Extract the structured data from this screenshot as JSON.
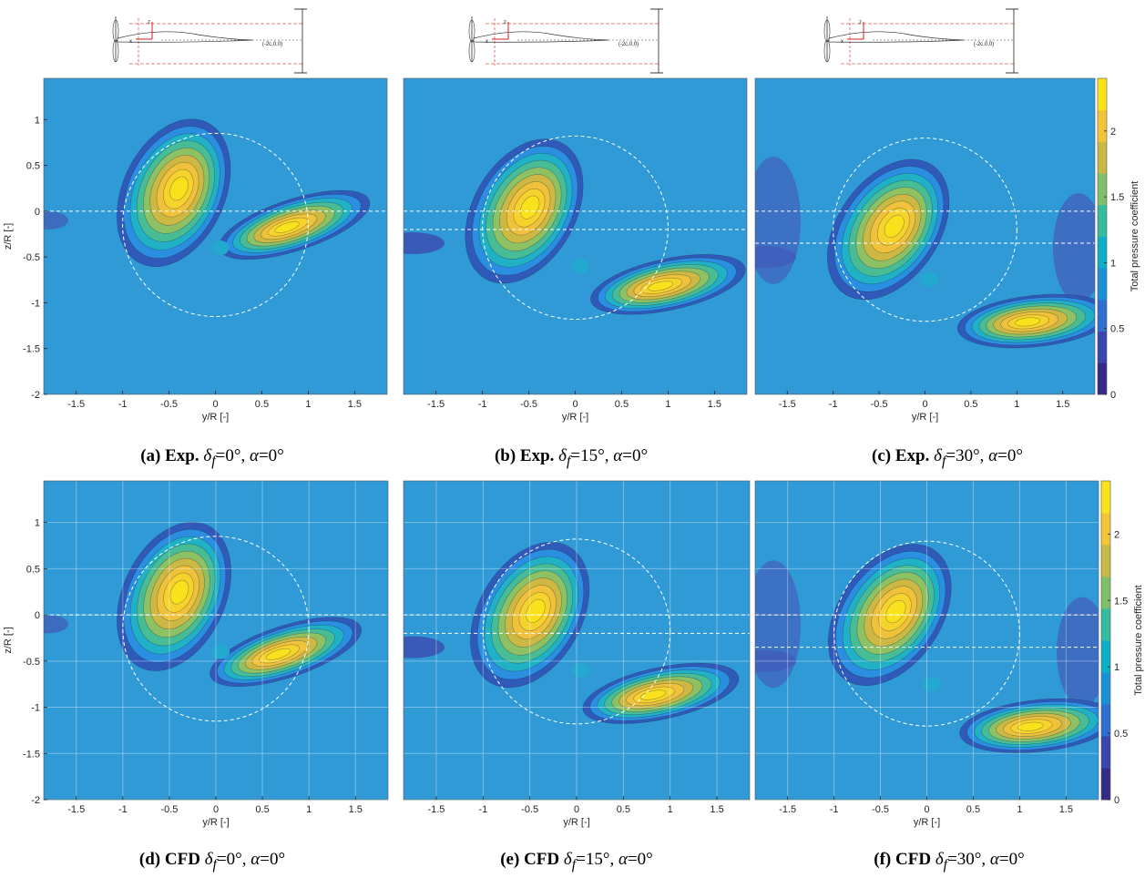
{
  "figure": {
    "panels": [
      {
        "id": "a",
        "caption": {
          "label": "(a)",
          "source": "Exp.",
          "delta_sym": "δ",
          "delta_sub": "f",
          "delta_val": "=0°",
          "alpha_sym": "α",
          "alpha_val": "=0°"
        },
        "y_ticks_shown": true,
        "wing_offset": 0.0,
        "core_main": {
          "y": -0.45,
          "z": 0.2
        },
        "core_tail": {
          "y": 0.85,
          "z": -0.15
        }
      },
      {
        "id": "b",
        "caption": {
          "label": "(b)",
          "source": "Exp.",
          "delta_sym": "δ",
          "delta_sub": "f",
          "delta_val": "=15°",
          "alpha_sym": "α",
          "alpha_val": "=0°"
        },
        "y_ticks_shown": false,
        "wing_offset": -0.2,
        "core_main": {
          "y": -0.55,
          "z": 0.0
        },
        "core_tail": {
          "y": 1.0,
          "z": -0.8
        }
      },
      {
        "id": "c",
        "caption": {
          "label": "(c)",
          "source": "Exp.",
          "delta_sym": "δ",
          "delta_sub": "f",
          "delta_val": "=30°",
          "alpha_sym": "α",
          "alpha_val": "=0°"
        },
        "y_ticks_shown": false,
        "wing_offset": -0.35,
        "core_main": {
          "y": -0.4,
          "z": -0.2
        },
        "core_tail": {
          "y": 1.2,
          "z": -1.2
        }
      },
      {
        "id": "d",
        "caption": {
          "label": "(d)",
          "source": "CFD",
          "delta_sym": "δ",
          "delta_sub": "f",
          "delta_val": "=0°",
          "alpha_sym": "α",
          "alpha_val": "=0°"
        },
        "y_ticks_shown": true,
        "wing_offset": 0.0,
        "core_main": {
          "y": -0.45,
          "z": 0.2
        },
        "core_tail": {
          "y": 0.75,
          "z": -0.4
        }
      },
      {
        "id": "e",
        "caption": {
          "label": "(e)",
          "source": "CFD",
          "delta_sym": "δ",
          "delta_sub": "f",
          "delta_val": "=15°",
          "alpha_sym": "α",
          "alpha_val": "=0°"
        },
        "y_ticks_shown": false,
        "wing_offset": -0.2,
        "core_main": {
          "y": -0.5,
          "z": 0.0
        },
        "core_tail": {
          "y": 0.9,
          "z": -0.85
        }
      },
      {
        "id": "f",
        "caption": {
          "label": "(f)",
          "source": "CFD",
          "delta_sym": "δ",
          "delta_sub": "f",
          "delta_val": "=30°",
          "alpha_sym": "α",
          "alpha_val": "=0°"
        },
        "y_ticks_shown": false,
        "wing_offset": -0.35,
        "core_main": {
          "y": -0.4,
          "z": 0.0
        },
        "core_tail": {
          "y": 1.2,
          "z": -1.2
        }
      }
    ],
    "axis_labels": {
      "x": "y/R [-]",
      "y": "z/R [-]"
    },
    "x_ticks": [
      "-1.5",
      "-1",
      "-0.5",
      "0",
      "0.5",
      "1",
      "1.5"
    ],
    "y_ticks": [
      "1",
      "0.5",
      "0",
      "-0.5",
      "-1",
      "-1.5",
      "-2"
    ],
    "colorbar": {
      "label": "Total pressure coefficient",
      "ticks": [
        "2",
        "1.5",
        "1",
        "0.5",
        "0"
      ]
    },
    "schematic": {
      "annotation": "(-2c,0,0)",
      "axis_x": "x",
      "axis_z": "z"
    }
  },
  "chart_data": {
    "type": "heatmap",
    "variable": "Total pressure coefficient",
    "xlabel": "y/R [-]",
    "ylabel": "z/R [-]",
    "xlim": [
      -1.85,
      1.85
    ],
    "ylim": [
      -2.0,
      1.45
    ],
    "clim": [
      0,
      2.4
    ],
    "colormap": "parula",
    "colors": {
      "background_level": "#2f9ad6",
      "low": "#3b3da8",
      "mid": "#25b7b5",
      "high": "#f9d924",
      "core": "#fae21a"
    },
    "rotor_disk_radius": 1.0
  }
}
